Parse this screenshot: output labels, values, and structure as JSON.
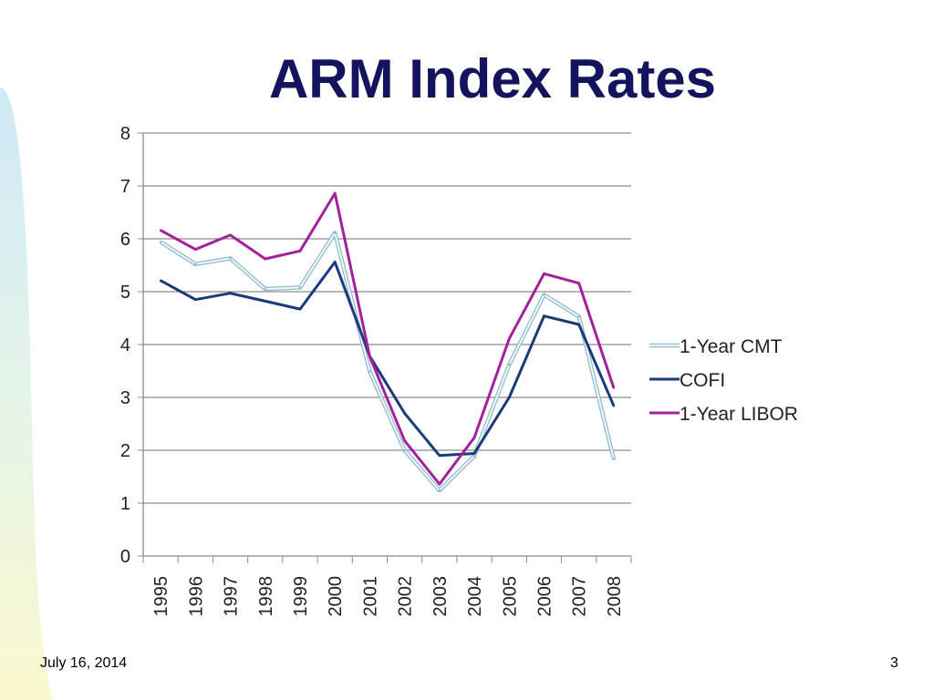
{
  "slide": {
    "title": "ARM Index Rates",
    "footer_date": "July 16, 2014",
    "page_number": "3"
  },
  "chart_data": {
    "type": "line",
    "title": "",
    "xlabel": "",
    "ylabel": "",
    "categories": [
      "1995",
      "1996",
      "1997",
      "1998",
      "1999",
      "2000",
      "2001",
      "2002",
      "2003",
      "2004",
      "2005",
      "2006",
      "2007",
      "2008"
    ],
    "ylim": [
      0,
      8
    ],
    "yticks": [
      0,
      1,
      2,
      3,
      4,
      5,
      6,
      7,
      8
    ],
    "grid": true,
    "legend_position": "right",
    "series": [
      {
        "name": "1-Year CMT",
        "color": "#a9cfe3",
        "values": [
          5.94,
          5.52,
          5.63,
          5.05,
          5.08,
          6.11,
          3.49,
          2.0,
          1.24,
          1.89,
          3.62,
          4.94,
          4.53,
          1.83
        ]
      },
      {
        "name": "COFI",
        "color": "#1b3a7a",
        "values": [
          5.21,
          4.85,
          4.97,
          4.82,
          4.67,
          5.56,
          3.78,
          2.7,
          1.9,
          1.94,
          3.0,
          4.54,
          4.38,
          2.84
        ]
      },
      {
        "name": "1-Year LIBOR",
        "color": "#a3219c",
        "values": [
          6.16,
          5.8,
          6.07,
          5.62,
          5.77,
          6.86,
          3.77,
          2.18,
          1.36,
          2.24,
          4.11,
          5.34,
          5.16,
          3.18
        ]
      }
    ]
  }
}
